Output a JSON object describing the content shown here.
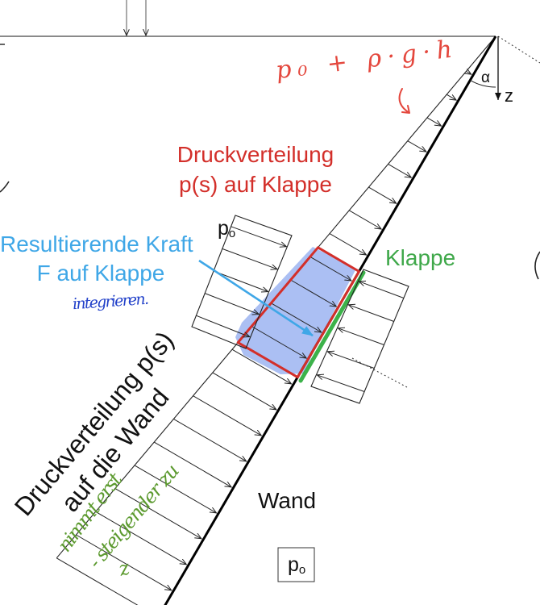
{
  "formula_note": "p₀ + ρ·g·h",
  "flap_pressure": {
    "line1": "Druckverteilung",
    "line2": "p(s) auf Klappe"
  },
  "resultant": {
    "line1": "Resultierende Kraft",
    "line2": "F auf Klappe",
    "note": "integrieren."
  },
  "flap_label": "Klappe",
  "ambient_pressure": {
    "symbol": "p",
    "subscript": "o"
  },
  "ambient_pressure_box": {
    "symbol": "p",
    "subscript": "o"
  },
  "wall_label": "Wand",
  "angle_label": "α",
  "axis_label": "z",
  "wall_pressure": {
    "line1": "Druckverteilung p(s)",
    "line2": "auf die Wand"
  },
  "green_note": {
    "line1": "nimmt erst",
    "line2": "- steigender zu",
    "line3": "z"
  },
  "colors": {
    "label_red": "#d32f2a",
    "handwriting_red": "#e4473d",
    "label_blue": "#3fa7e7",
    "fill_blue": "#a6bcf2",
    "handwriting_blue": "#2140c9",
    "label_green": "#3fa84a",
    "flap_green": "#3cb24a",
    "handwriting_green": "#5c9a2f"
  }
}
